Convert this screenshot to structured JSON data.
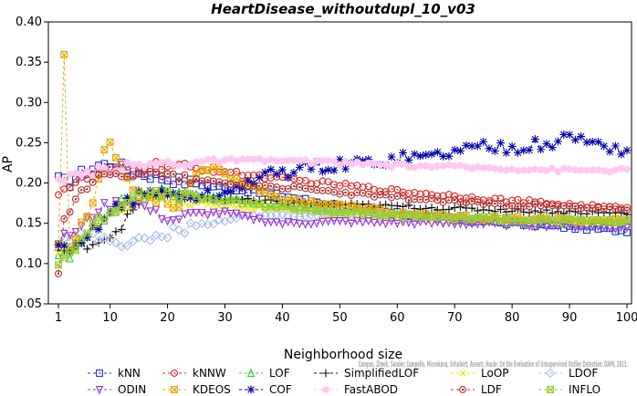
{
  "chart_data": {
    "type": "line",
    "title": "HeartDisease_withoutdupl_10_v03",
    "xlabel": "Neighborhood size",
    "ylabel": "AP",
    "xlim": [
      1,
      100
    ],
    "ylim": [
      0.05,
      0.4
    ],
    "x_ticks": [
      1,
      10,
      20,
      30,
      40,
      50,
      60,
      70,
      80,
      90,
      100
    ],
    "y_ticks": [
      "0.05",
      "0.10",
      "0.15",
      "0.20",
      "0.25",
      "0.30",
      "0.35",
      "0.40"
    ],
    "watermark": "Campos, Zimek, Sander, Campello, Micenkova, Schubert, Assent, Houle: On the Evaluation of Unsupervised Outlier Detection. DAMI, 2015.",
    "legend_position": "bottom",
    "series": [
      {
        "name": "kNN",
        "color": "#2233cc",
        "marker": "square",
        "knots": [
          [
            1,
            0.204
          ],
          [
            3,
            0.2
          ],
          [
            5,
            0.212
          ],
          [
            8,
            0.222
          ],
          [
            11,
            0.224
          ],
          [
            14,
            0.214
          ],
          [
            20,
            0.205
          ],
          [
            30,
            0.194
          ],
          [
            40,
            0.184
          ],
          [
            50,
            0.172
          ],
          [
            60,
            0.162
          ],
          [
            70,
            0.155
          ],
          [
            80,
            0.15
          ],
          [
            90,
            0.145
          ],
          [
            100,
            0.141
          ]
        ]
      },
      {
        "name": "kNNW",
        "color": "#dd2222",
        "marker": "circle",
        "knots": [
          [
            1,
            0.19
          ],
          [
            4,
            0.2
          ],
          [
            8,
            0.212
          ],
          [
            12,
            0.218
          ],
          [
            16,
            0.222
          ],
          [
            20,
            0.221
          ],
          [
            30,
            0.214
          ],
          [
            40,
            0.205
          ],
          [
            50,
            0.198
          ],
          [
            60,
            0.19
          ],
          [
            70,
            0.184
          ],
          [
            80,
            0.178
          ],
          [
            90,
            0.173
          ],
          [
            100,
            0.168
          ]
        ]
      },
      {
        "name": "LOF",
        "color": "#33cc33",
        "marker": "triangle-up",
        "knots": [
          [
            1,
            0.112
          ],
          [
            3,
            0.106
          ],
          [
            6,
            0.13
          ],
          [
            9,
            0.158
          ],
          [
            12,
            0.175
          ],
          [
            16,
            0.19
          ],
          [
            20,
            0.188
          ],
          [
            30,
            0.18
          ],
          [
            40,
            0.172
          ],
          [
            50,
            0.165
          ],
          [
            60,
            0.16
          ],
          [
            70,
            0.156
          ],
          [
            80,
            0.153
          ],
          [
            90,
            0.151
          ],
          [
            100,
            0.15
          ]
        ]
      },
      {
        "name": "SimplifiedLOF",
        "color": "#111111",
        "marker": "plus",
        "knots": [
          [
            1,
            0.116
          ],
          [
            3,
            0.118
          ],
          [
            5,
            0.122
          ],
          [
            8,
            0.128
          ],
          [
            11,
            0.14
          ],
          [
            14,
            0.165
          ],
          [
            17,
            0.188
          ],
          [
            20,
            0.185
          ],
          [
            30,
            0.18
          ],
          [
            40,
            0.176
          ],
          [
            50,
            0.173
          ],
          [
            60,
            0.171
          ],
          [
            70,
            0.168
          ],
          [
            80,
            0.166
          ],
          [
            90,
            0.164
          ],
          [
            100,
            0.162
          ]
        ]
      },
      {
        "name": "LoOP",
        "color": "#e6e600",
        "marker": "x",
        "knots": [
          [
            1,
            0.11
          ],
          [
            4,
            0.12
          ],
          [
            8,
            0.15
          ],
          [
            12,
            0.17
          ],
          [
            16,
            0.182
          ],
          [
            20,
            0.18
          ],
          [
            30,
            0.172
          ],
          [
            40,
            0.166
          ],
          [
            50,
            0.161
          ],
          [
            60,
            0.158
          ],
          [
            70,
            0.156
          ],
          [
            80,
            0.154
          ],
          [
            90,
            0.152
          ],
          [
            100,
            0.151
          ]
        ]
      },
      {
        "name": "LDOF",
        "color": "#aabbee",
        "marker": "diamond",
        "knots": [
          [
            1,
            0.13
          ],
          [
            5,
            0.135
          ],
          [
            9,
            0.13
          ],
          [
            13,
            0.125
          ],
          [
            17,
            0.13
          ],
          [
            21,
            0.14
          ],
          [
            27,
            0.15
          ],
          [
            32,
            0.158
          ],
          [
            40,
            0.16
          ],
          [
            50,
            0.16
          ],
          [
            60,
            0.158
          ],
          [
            70,
            0.155
          ],
          [
            80,
            0.152
          ],
          [
            90,
            0.15
          ],
          [
            100,
            0.148
          ]
        ]
      },
      {
        "name": "ODIN",
        "color": "#9933cc",
        "marker": "triangle-down",
        "knots": [
          [
            1,
            0.128
          ],
          [
            5,
            0.145
          ],
          [
            8,
            0.168
          ],
          [
            10,
            0.172
          ],
          [
            13,
            0.178
          ],
          [
            15,
            0.174
          ],
          [
            18,
            0.162
          ],
          [
            21,
            0.154
          ],
          [
            25,
            0.162
          ],
          [
            30,
            0.163
          ],
          [
            35,
            0.156
          ],
          [
            40,
            0.15
          ],
          [
            50,
            0.152
          ],
          [
            60,
            0.151
          ],
          [
            70,
            0.15
          ],
          [
            80,
            0.149
          ],
          [
            90,
            0.147
          ],
          [
            100,
            0.145
          ]
        ]
      },
      {
        "name": "KDEOS",
        "color": "#e6a800",
        "marker": "boxed-x",
        "knots": [
          [
            1,
            0.125
          ],
          [
            2,
            0.36
          ],
          [
            3,
            0.115
          ],
          [
            4,
            0.13
          ],
          [
            5,
            0.15
          ],
          [
            7,
            0.175
          ],
          [
            9,
            0.245
          ],
          [
            10,
            0.248
          ],
          [
            12,
            0.22
          ],
          [
            14,
            0.19
          ],
          [
            18,
            0.18
          ],
          [
            22,
            0.172
          ],
          [
            25,
            0.214
          ],
          [
            28,
            0.22
          ],
          [
            30,
            0.21
          ],
          [
            40,
            0.18
          ],
          [
            50,
            0.172
          ],
          [
            60,
            0.163
          ],
          [
            70,
            0.158
          ],
          [
            80,
            0.156
          ],
          [
            90,
            0.154
          ],
          [
            100,
            0.154
          ]
        ]
      },
      {
        "name": "COF",
        "color": "#0000aa",
        "marker": "asterisk",
        "knots": [
          [
            1,
            0.12
          ],
          [
            3,
            0.11
          ],
          [
            5,
            0.125
          ],
          [
            8,
            0.15
          ],
          [
            10,
            0.165
          ],
          [
            12,
            0.175
          ],
          [
            14,
            0.18
          ],
          [
            17,
            0.19
          ],
          [
            20,
            0.185
          ],
          [
            25,
            0.183
          ],
          [
            30,
            0.185
          ],
          [
            33,
            0.2
          ],
          [
            38,
            0.21
          ],
          [
            43,
            0.218
          ],
          [
            50,
            0.222
          ],
          [
            55,
            0.225
          ],
          [
            60,
            0.232
          ],
          [
            65,
            0.232
          ],
          [
            70,
            0.24
          ],
          [
            75,
            0.246
          ],
          [
            80,
            0.245
          ],
          [
            85,
            0.247
          ],
          [
            90,
            0.256
          ],
          [
            95,
            0.25
          ],
          [
            100,
            0.238
          ]
        ]
      },
      {
        "name": "FastABOD",
        "color": "#ffc8f0",
        "marker": "dot",
        "knots": [
          [
            1,
            0.2
          ],
          [
            5,
            0.21
          ],
          [
            10,
            0.218
          ],
          [
            15,
            0.222
          ],
          [
            20,
            0.225
          ],
          [
            30,
            0.228
          ],
          [
            40,
            0.228
          ],
          [
            50,
            0.225
          ],
          [
            60,
            0.222
          ],
          [
            70,
            0.22
          ],
          [
            80,
            0.218
          ],
          [
            90,
            0.216
          ],
          [
            100,
            0.216
          ]
        ]
      },
      {
        "name": "LDF",
        "color": "#b03030",
        "marker": "circle-dot",
        "knots": [
          [
            1,
            0.092
          ],
          [
            2,
            0.15
          ],
          [
            4,
            0.185
          ],
          [
            6,
            0.198
          ],
          [
            8,
            0.205
          ],
          [
            12,
            0.212
          ],
          [
            16,
            0.214
          ],
          [
            20,
            0.208
          ],
          [
            30,
            0.2
          ],
          [
            40,
            0.195
          ],
          [
            50,
            0.188
          ],
          [
            60,
            0.182
          ],
          [
            70,
            0.177
          ],
          [
            80,
            0.173
          ],
          [
            90,
            0.17
          ],
          [
            100,
            0.168
          ]
        ]
      },
      {
        "name": "INFLO",
        "color": "#99cc33",
        "marker": "hourglass",
        "knots": [
          [
            1,
            0.1
          ],
          [
            3,
            0.115
          ],
          [
            6,
            0.14
          ],
          [
            9,
            0.16
          ],
          [
            12,
            0.176
          ],
          [
            16,
            0.186
          ],
          [
            20,
            0.185
          ],
          [
            30,
            0.178
          ],
          [
            40,
            0.17
          ],
          [
            50,
            0.164
          ],
          [
            60,
            0.16
          ],
          [
            70,
            0.157
          ],
          [
            80,
            0.155
          ],
          [
            90,
            0.153
          ],
          [
            100,
            0.152
          ]
        ]
      }
    ]
  }
}
